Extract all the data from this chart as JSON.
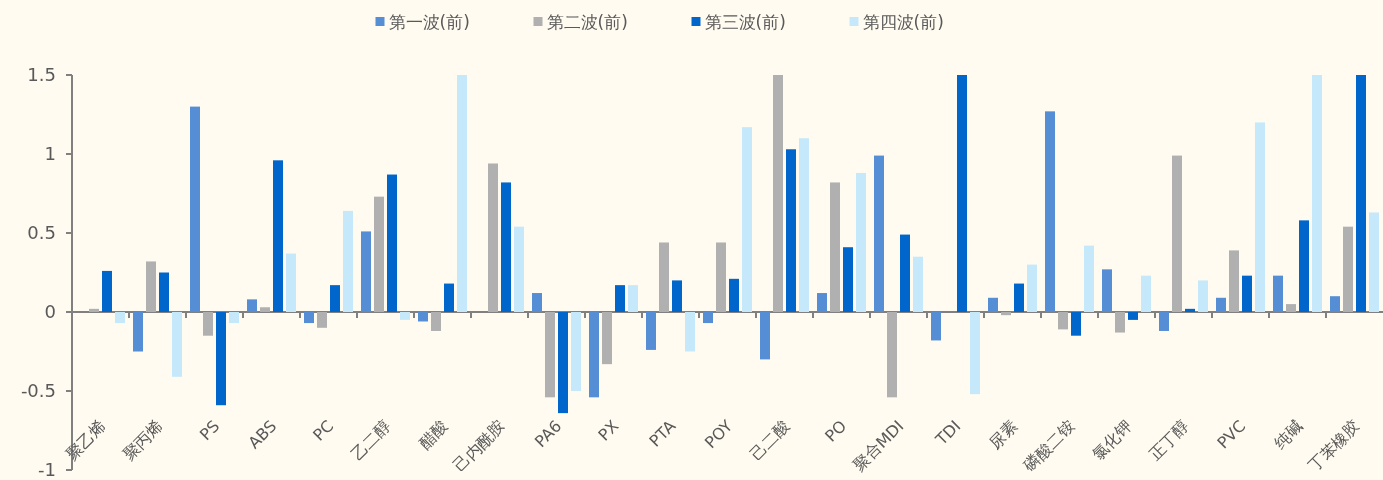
{
  "chart_data": {
    "type": "bar",
    "categories": [
      "聚乙烯",
      "聚丙烯",
      "PS",
      "ABS",
      "PC",
      "乙二醇",
      "醋酸",
      "己内酰胺",
      "PA6",
      "PX",
      "PTA",
      "POY",
      "己二酸",
      "PO",
      "聚合MDI",
      "TDI",
      "尿素",
      "磷酸二铵",
      "氯化钾",
      "正丁醇",
      "PVC",
      "纯碱",
      "丁苯橡胶"
    ],
    "series": [
      {
        "name": "第一波(前)",
        "color": "#558ed5",
        "values": [
          null,
          -0.25,
          1.3,
          0.08,
          -0.07,
          0.51,
          -0.06,
          null,
          0.12,
          -0.54,
          -0.24,
          -0.07,
          -0.3,
          0.12,
          0.99,
          -0.18,
          0.09,
          1.27,
          0.27,
          -0.12,
          0.09,
          0.23,
          0.1
        ]
      },
      {
        "name": "第二波(前)",
        "color": "#b0b0b0",
        "values": [
          0.02,
          0.32,
          -0.15,
          0.03,
          -0.1,
          0.73,
          -0.12,
          0.94,
          -0.54,
          -0.33,
          0.44,
          0.44,
          1.5,
          0.82,
          -0.54,
          null,
          -0.02,
          -0.11,
          -0.13,
          0.99,
          0.39,
          0.05,
          0.54
        ]
      },
      {
        "name": "第三波(前)",
        "color": "#0066cc",
        "values": [
          0.26,
          0.25,
          -0.59,
          0.96,
          0.17,
          0.87,
          0.18,
          0.82,
          -0.64,
          0.17,
          0.2,
          0.21,
          1.03,
          0.41,
          0.49,
          1.5,
          0.18,
          -0.15,
          -0.05,
          0.02,
          0.23,
          0.58,
          1.5
        ]
      },
      {
        "name": "第四波(前)",
        "color": "#c5e9fb",
        "values": [
          -0.07,
          -0.41,
          -0.07,
          0.37,
          0.64,
          -0.05,
          1.5,
          0.54,
          -0.5,
          0.17,
          -0.25,
          1.17,
          1.1,
          0.88,
          0.35,
          -0.52,
          0.3,
          0.42,
          0.23,
          0.2,
          1.2,
          1.5,
          0.63
        ]
      }
    ],
    "ylim": [
      -1,
      1.5
    ],
    "yticks": [
      {
        "value": -1,
        "label": "-1"
      },
      {
        "value": -0.5,
        "label": "-0.5"
      },
      0,
      0.5,
      1,
      1.5
    ],
    "legend": "top"
  }
}
